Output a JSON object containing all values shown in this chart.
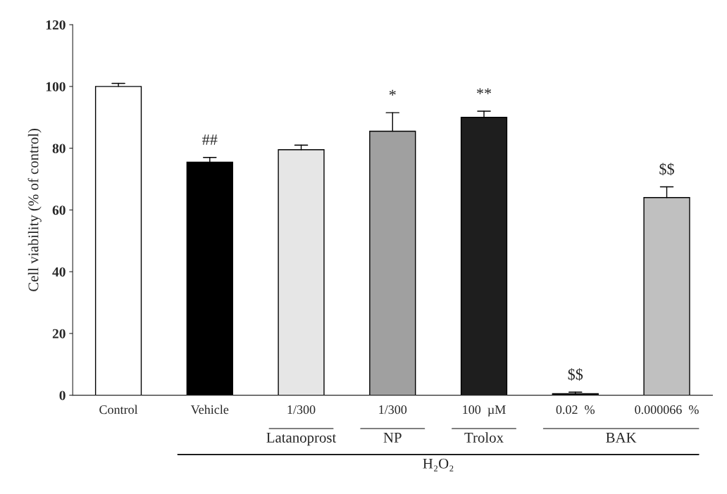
{
  "chart_data": {
    "type": "bar",
    "ylabel": "Cell viability (% of control)",
    "categories": [
      "Control",
      "Vehicle",
      "1/300",
      "1/300",
      "100  µM",
      "0.02  %",
      "0.000066  %"
    ],
    "values": [
      100,
      75.5,
      79.5,
      85.5,
      90,
      0.5,
      64
    ],
    "errors": [
      [
        100,
        101
      ],
      [
        75.5,
        77
      ],
      [
        79.5,
        81
      ],
      [
        85.5,
        91.5
      ],
      [
        90,
        92
      ],
      [
        0.5,
        1
      ],
      [
        64,
        67.5
      ]
    ],
    "colors": [
      "#ffffff",
      "#000000",
      "#e6e6e6",
      "#a0a0a0",
      "#1e1e1e",
      "#000000",
      "#c0c0c0"
    ],
    "ylim": [
      0,
      120
    ],
    "yticks": [
      0,
      20,
      40,
      60,
      80,
      100,
      120
    ],
    "annotations": [
      "##",
      "*",
      "**",
      "$$",
      "$$",
      "Latanoprost",
      "NP",
      "Trolox",
      "BAK",
      "H₂O₂"
    ]
  }
}
